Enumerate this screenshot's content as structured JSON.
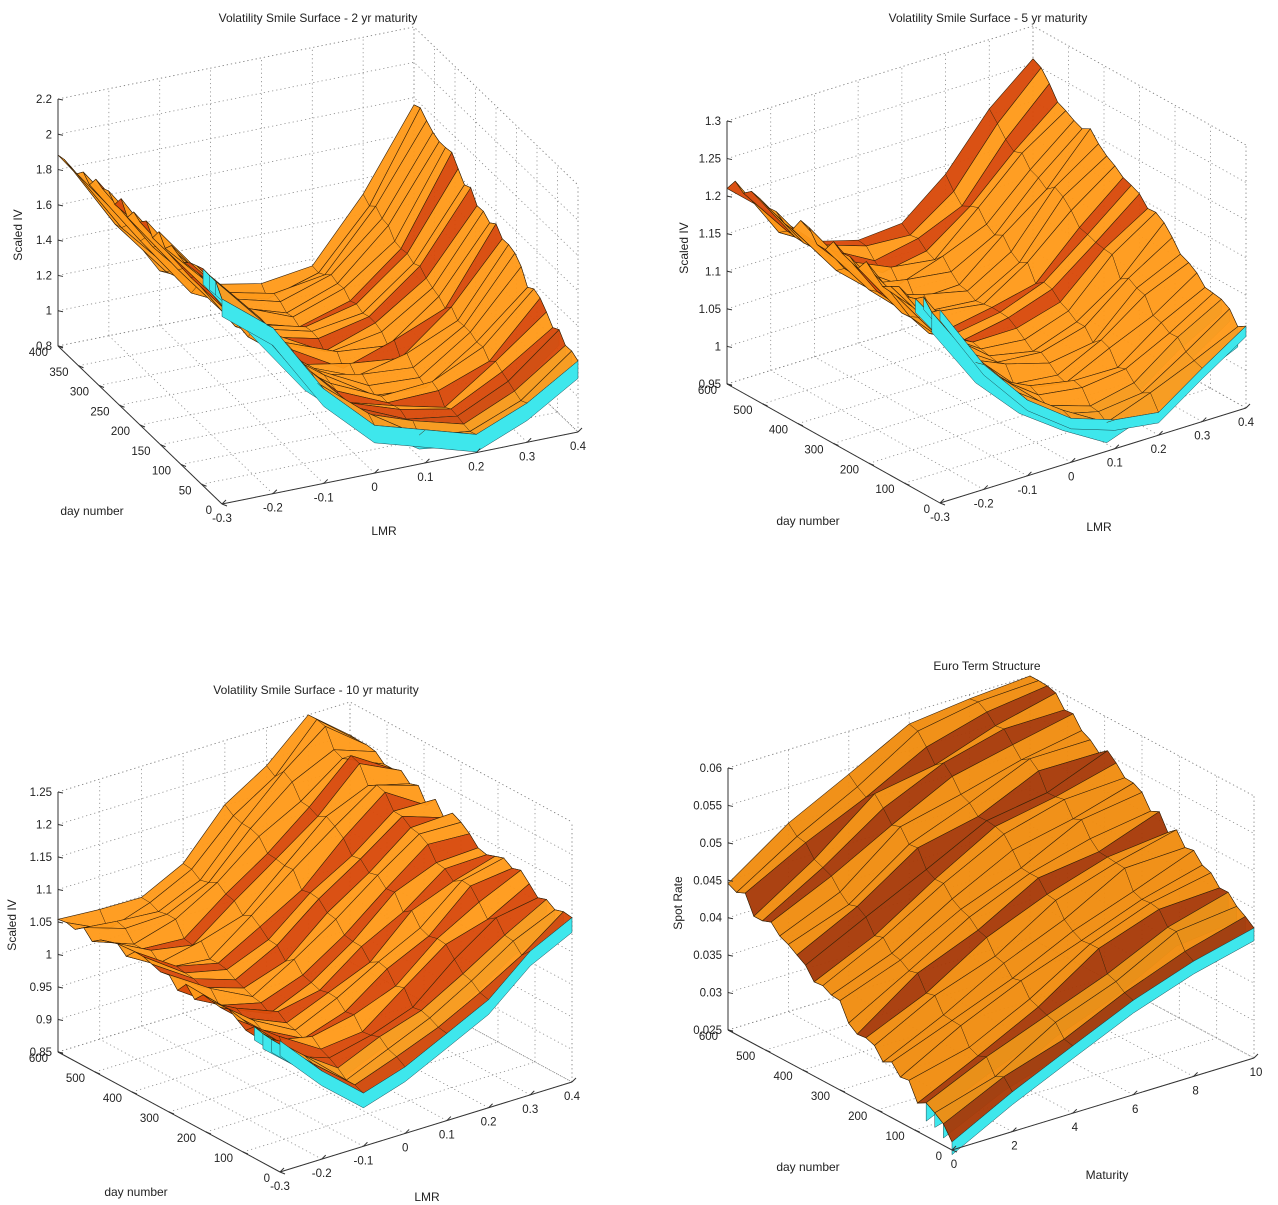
{
  "chart_data": [
    {
      "type": "surface",
      "title": "Volatility Smile Surface - 2 yr maturity",
      "xlabel": "LMR",
      "ylabel": "day number",
      "zlabel": "Scaled IV",
      "xlim": [
        -0.3,
        0.4
      ],
      "ylim": [
        0,
        400
      ],
      "zlim": [
        0.8,
        2.2
      ],
      "xticks": [
        "-0.3",
        "-0.2",
        "-0.1",
        "0",
        "0.1",
        "0.2",
        "0.3",
        "0.4"
      ],
      "yticks": [
        "0",
        "50",
        "100",
        "150",
        "200",
        "250",
        "300",
        "350",
        "400"
      ],
      "zticks": [
        "0.8",
        "1",
        "1.2",
        "1.4",
        "1.6",
        "1.8",
        "2",
        "2.2"
      ],
      "grid": true,
      "surface_colors": [
        "#ff9a1a",
        "#d94a0a",
        "#3ee7ec"
      ],
      "profile": {
        "lmr": [
          -0.3,
          -0.2,
          -0.1,
          0,
          0.1,
          0.2,
          0.3,
          0.4
        ],
        "front_day": 0,
        "front_iv": [
          2.0,
          1.7,
          1.35,
          1.1,
          0.95,
          0.9,
          1.0,
          1.2
        ],
        "back_day": 400,
        "back_iv": [
          1.9,
          1.5,
          1.15,
          0.95,
          0.9,
          1.0,
          1.3,
          1.8
        ]
      }
    },
    {
      "type": "surface",
      "title": "Volatility Smile Surface - 5 yr maturity",
      "xlabel": "LMR",
      "ylabel": "day number",
      "zlabel": "Scaled IV",
      "xlim": [
        -0.3,
        0.4
      ],
      "ylim": [
        0,
        600
      ],
      "zlim": [
        0.95,
        1.3
      ],
      "xticks": [
        "-0.3",
        "-0.2",
        "-0.1",
        "0",
        "0.1",
        "0.2",
        "0.3",
        "0.4"
      ],
      "yticks": [
        "0",
        "100",
        "200",
        "300",
        "400",
        "500",
        "600"
      ],
      "zticks": [
        "0.95",
        "1",
        "1.05",
        "1.1",
        "1.15",
        "1.2",
        "1.25",
        "1.3"
      ],
      "grid": true,
      "surface_colors": [
        "#ff9a1a",
        "#d94a0a",
        "#3ee7ec"
      ],
      "profile": {
        "lmr": [
          -0.3,
          -0.2,
          -0.1,
          0,
          0.1,
          0.2,
          0.3,
          0.4
        ],
        "front_day": 0,
        "front_iv": [
          1.2,
          1.12,
          1.05,
          1.0,
          0.98,
          0.99,
          1.02,
          1.05
        ],
        "back_day": 600,
        "back_iv": [
          1.22,
          1.15,
          1.1,
          1.08,
          1.09,
          1.13,
          1.2,
          1.25
        ]
      }
    },
    {
      "type": "surface",
      "title": "Volatility Smile Surface - 10 yr maturity",
      "xlabel": "LMR",
      "ylabel": "day number",
      "zlabel": "Scaled IV",
      "xlim": [
        -0.3,
        0.4
      ],
      "ylim": [
        0,
        600
      ],
      "zlim": [
        0.85,
        1.25
      ],
      "xticks": [
        "-0.3",
        "-0.2",
        "-0.1",
        "0",
        "0.1",
        "0.2",
        "0.3",
        "0.4"
      ],
      "yticks": [
        "0",
        "100",
        "200",
        "300",
        "400",
        "500",
        "600"
      ],
      "zticks": [
        "0.85",
        "0.9",
        "0.95",
        "1",
        "1.05",
        "1.1",
        "1.15",
        "1.2",
        "1.25"
      ],
      "grid": true,
      "surface_colors": [
        "#ff9a1a",
        "#d94a0a",
        "#3ee7ec"
      ],
      "profile": {
        "lmr": [
          -0.3,
          -0.2,
          -0.1,
          0,
          0.1,
          0.2,
          0.3,
          0.4
        ],
        "front_day": 0,
        "front_iv": [
          1.05,
          0.98,
          0.94,
          0.95,
          0.98,
          1.02,
          1.06,
          1.1
        ],
        "back_day": 600,
        "back_iv": [
          1.06,
          1.04,
          1.05,
          1.09,
          1.15,
          1.2,
          1.25,
          1.2
        ]
      }
    },
    {
      "type": "surface",
      "title": "Euro Term Structure",
      "xlabel": "Maturity",
      "ylabel": "day number",
      "zlabel": "Spot Rate",
      "xlim": [
        0,
        10
      ],
      "ylim": [
        0,
        600
      ],
      "zlim": [
        0.025,
        0.06
      ],
      "xticks": [
        "0",
        "2",
        "4",
        "6",
        "8",
        "10"
      ],
      "yticks": [
        "0",
        "100",
        "200",
        "300",
        "400",
        "500",
        "600"
      ],
      "zticks": [
        "0.025",
        "0.03",
        "0.035",
        "0.04",
        "0.045",
        "0.05",
        "0.055",
        "0.06"
      ],
      "grid": true,
      "surface_colors": [
        "#f08c10",
        "#a83a08",
        "#3ee7ec"
      ],
      "profile": {
        "maturity": [
          0,
          2,
          4,
          6,
          8,
          10
        ],
        "front_day": 0,
        "front_rate": [
          0.027,
          0.03,
          0.034,
          0.038,
          0.041,
          0.043
        ],
        "back_day": 600,
        "back_rate": [
          0.045,
          0.05,
          0.055,
          0.058,
          0.06,
          0.061
        ]
      }
    }
  ]
}
